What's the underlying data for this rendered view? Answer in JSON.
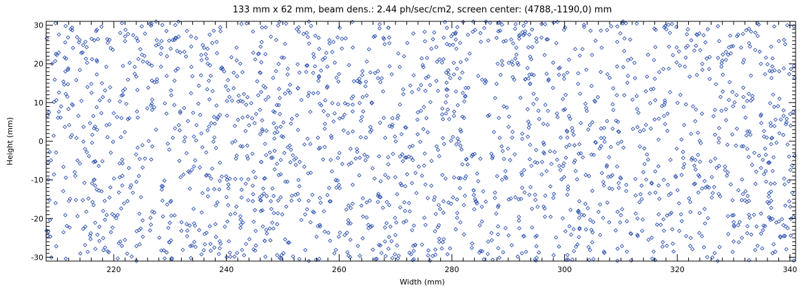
{
  "chart_data": {
    "type": "scatter",
    "title": "133 mm x 62 mm, beam dens.: 2.44 ph/sec/cm2, screen center: (4788,-1190,0) mm",
    "xlabel": "Width (mm)",
    "ylabel": "Height (mm)",
    "xlim": [
      208,
      341
    ],
    "ylim": [
      -31,
      31
    ],
    "x_ticks": [
      220,
      240,
      260,
      280,
      300,
      320,
      340
    ],
    "y_ticks": [
      -30,
      -20,
      -10,
      0,
      10,
      20,
      30
    ],
    "x_tick_labels": [
      "220",
      "240",
      "260",
      "280",
      "300",
      "320",
      "340"
    ],
    "y_tick_labels": [
      "-30",
      "-20",
      "-10",
      "0",
      "10",
      "20",
      "30"
    ],
    "grid": false,
    "marker": "diamond",
    "marker_color": "#2f52b0",
    "series": [
      {
        "point_count": 2010,
        "distribution": "uniform random over the full screen area"
      }
    ]
  }
}
